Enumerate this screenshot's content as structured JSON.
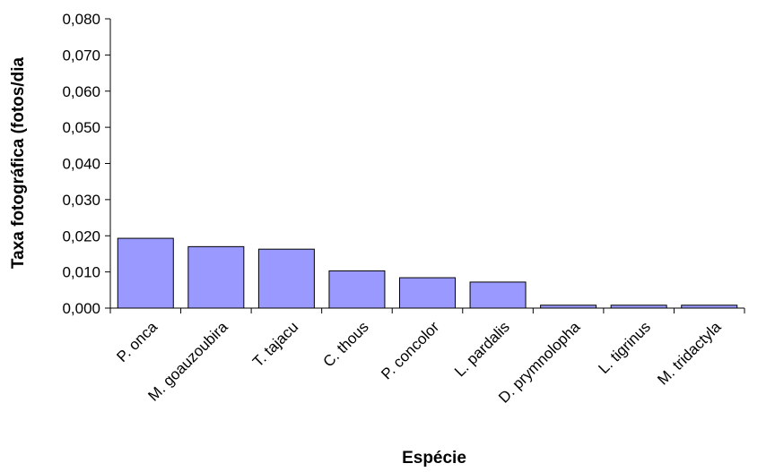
{
  "chart_data": {
    "type": "bar",
    "title": "",
    "xlabel": "Espécie",
    "ylabel": "Taxa fotográfica (fotos/dia",
    "categories": [
      "P. onca",
      "M. goauzoubira",
      "T. tajacu",
      "C. thous",
      "P. concolor",
      "L. pardalis",
      "D. prymnolopha",
      "L. tigrinus",
      "M. tridactyla"
    ],
    "values": [
      0.0193,
      0.017,
      0.0163,
      0.0103,
      0.0084,
      0.0072,
      0.0008,
      0.0008,
      0.0008
    ],
    "ylim": [
      0,
      0.08
    ],
    "yticks": [
      "0,000",
      "0,010",
      "0,020",
      "0,030",
      "0,040",
      "0,050",
      "0,060",
      "0,070",
      "0,080"
    ],
    "grid": false,
    "legend": "none",
    "bar_color": "#9999ff",
    "bar_edge_color": "#000000"
  }
}
